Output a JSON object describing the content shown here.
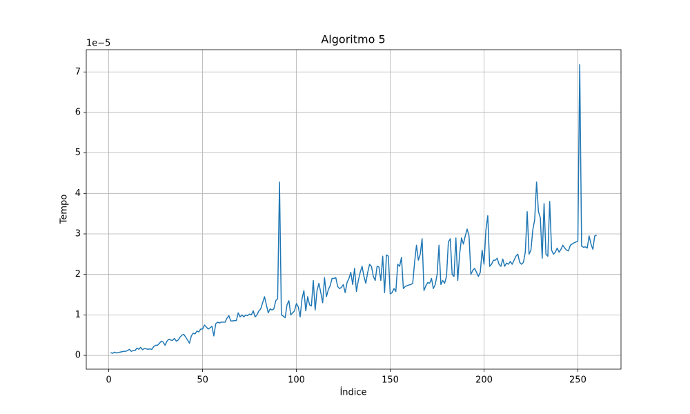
{
  "chart_data": {
    "type": "line",
    "title": "Algoritmo 5",
    "x_label": "Índice",
    "y_label": "Tempo",
    "y_offset_label": "1e−5",
    "xlim": [
      -12,
      273
    ],
    "ylim": [
      -0.34,
      7.55
    ],
    "xticks": [
      0,
      50,
      100,
      150,
      200,
      250
    ],
    "yticks": [
      0,
      1,
      2,
      3,
      4,
      5,
      6,
      7
    ],
    "grid": true,
    "x": [
      1,
      2,
      3,
      4,
      5,
      6,
      7,
      8,
      9,
      10,
      11,
      12,
      13,
      14,
      15,
      16,
      17,
      18,
      19,
      20,
      21,
      22,
      23,
      24,
      25,
      26,
      27,
      28,
      29,
      30,
      31,
      32,
      33,
      34,
      35,
      36,
      37,
      38,
      39,
      40,
      41,
      42,
      43,
      44,
      45,
      46,
      47,
      48,
      49,
      50,
      51,
      52,
      53,
      54,
      55,
      56,
      57,
      58,
      59,
      60,
      61,
      62,
      63,
      64,
      65,
      66,
      67,
      68,
      69,
      70,
      71,
      72,
      73,
      74,
      75,
      76,
      77,
      78,
      79,
      80,
      81,
      82,
      83,
      84,
      85,
      86,
      87,
      88,
      89,
      90,
      91,
      92,
      93,
      94,
      95,
      96,
      97,
      98,
      99,
      100,
      101,
      102,
      103,
      104,
      105,
      106,
      107,
      108,
      109,
      110,
      111,
      112,
      113,
      114,
      115,
      116,
      117,
      118,
      119,
      120,
      121,
      122,
      123,
      124,
      125,
      126,
      127,
      128,
      129,
      130,
      131,
      132,
      133,
      134,
      135,
      136,
      137,
      138,
      139,
      140,
      141,
      142,
      143,
      144,
      145,
      146,
      147,
      148,
      149,
      150,
      151,
      152,
      153,
      154,
      155,
      156,
      157,
      158,
      159,
      160,
      161,
      162,
      163,
      164,
      165,
      166,
      167,
      168,
      169,
      170,
      171,
      172,
      173,
      174,
      175,
      176,
      177,
      178,
      179,
      180,
      181,
      182,
      183,
      184,
      185,
      186,
      187,
      188,
      189,
      190,
      191,
      192,
      193,
      194,
      195,
      196,
      197,
      198,
      199,
      200,
      201,
      202,
      203,
      204,
      205,
      206,
      207,
      208,
      209,
      210,
      211,
      212,
      213,
      214,
      215,
      216,
      217,
      218,
      219,
      220,
      221,
      222,
      223,
      224,
      225,
      226,
      227,
      228,
      229,
      230,
      231,
      232,
      233,
      234,
      235,
      236,
      237,
      238,
      239,
      240,
      241,
      242,
      243,
      244,
      245,
      246,
      247,
      248,
      249,
      250,
      251,
      252,
      253,
      254,
      255,
      256,
      257,
      258,
      259,
      260
    ],
    "series": [
      {
        "color": "#1f77b4",
        "values": [
          0.07,
          0.05,
          0.08,
          0.06,
          0.07,
          0.08,
          0.09,
          0.1,
          0.1,
          0.12,
          0.15,
          0.1,
          0.12,
          0.12,
          0.18,
          0.15,
          0.2,
          0.14,
          0.17,
          0.16,
          0.15,
          0.16,
          0.15,
          0.22,
          0.25,
          0.25,
          0.3,
          0.35,
          0.33,
          0.25,
          0.35,
          0.4,
          0.38,
          0.37,
          0.42,
          0.35,
          0.38,
          0.45,
          0.5,
          0.52,
          0.45,
          0.38,
          0.3,
          0.48,
          0.55,
          0.53,
          0.6,
          0.58,
          0.65,
          0.65,
          0.75,
          0.7,
          0.65,
          0.68,
          0.72,
          0.48,
          0.78,
          0.82,
          0.8,
          0.82,
          0.82,
          0.82,
          0.92,
          0.98,
          0.85,
          0.85,
          0.86,
          0.86,
          1.05,
          0.95,
          1.0,
          0.95,
          1.0,
          0.98,
          1.02,
          1.0,
          1.1,
          0.95,
          1.0,
          1.1,
          1.15,
          1.3,
          1.45,
          1.25,
          1.05,
          1.15,
          1.12,
          1.15,
          1.35,
          1.4,
          4.28,
          1.0,
          0.97,
          0.93,
          1.25,
          1.35,
          1.0,
          1.05,
          1.1,
          1.28,
          1.2,
          0.95,
          1.4,
          1.6,
          1.1,
          1.45,
          1.25,
          1.22,
          1.85,
          1.12,
          1.6,
          1.78,
          1.55,
          1.3,
          1.92,
          1.45,
          1.62,
          1.72,
          1.9,
          1.9,
          1.92,
          1.7,
          1.65,
          1.68,
          1.75,
          1.55,
          1.8,
          1.9,
          2.05,
          1.75,
          2.15,
          1.58,
          1.85,
          2.05,
          2.2,
          1.95,
          1.78,
          2.05,
          2.25,
          2.2,
          1.95,
          1.85,
          2.2,
          2.18,
          1.85,
          2.45,
          1.55,
          2.48,
          2.45,
          1.52,
          1.55,
          1.65,
          1.58,
          2.25,
          2.2,
          2.42,
          1.65,
          1.7,
          1.72,
          1.74,
          1.75,
          1.78,
          2.3,
          2.72,
          2.35,
          2.5,
          2.88,
          1.6,
          1.72,
          1.8,
          1.78,
          1.9,
          1.65,
          1.75,
          2.0,
          2.72,
          1.75,
          1.85,
          1.78,
          1.95,
          2.8,
          2.88,
          2.0,
          1.95,
          2.9,
          1.85,
          2.5,
          2.9,
          2.75,
          2.95,
          3.12,
          2.95,
          2.0,
          2.1,
          2.15,
          2.05,
          1.95,
          2.05,
          2.6,
          2.25,
          3.1,
          3.45,
          2.2,
          2.25,
          2.35,
          2.35,
          2.4,
          2.25,
          2.2,
          2.38,
          2.2,
          2.28,
          2.25,
          2.32,
          2.25,
          2.35,
          2.45,
          2.5,
          2.3,
          2.25,
          2.3,
          2.55,
          3.55,
          2.5,
          2.6,
          3.1,
          3.35,
          4.28,
          3.55,
          3.4,
          2.4,
          3.75,
          2.5,
          2.45,
          3.8,
          2.6,
          2.5,
          2.55,
          2.65,
          2.55,
          2.62,
          2.72,
          2.65,
          2.6,
          2.58,
          2.72,
          2.75,
          2.78,
          2.8,
          2.82,
          7.18,
          2.7,
          2.67,
          2.68,
          2.65,
          2.95,
          2.75,
          2.62,
          2.95,
          2.97
        ]
      }
    ]
  }
}
